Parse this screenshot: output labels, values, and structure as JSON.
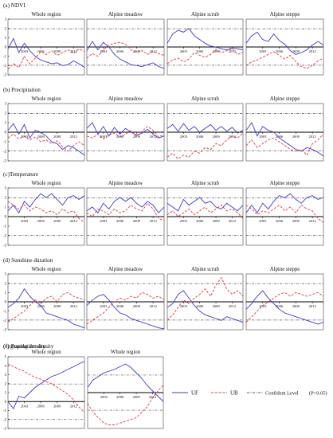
{
  "figure": {
    "x_ticks": [
      "2003",
      "2006",
      "2009",
      "2012"
    ],
    "y_ticks": [
      "3",
      "2",
      "1",
      "0",
      "-1",
      "-2",
      "-3"
    ],
    "legend": {
      "uf": "UF",
      "ub": "UB",
      "conf": "Confident Level",
      "conf_note": "(P<0.05)"
    },
    "colors": {
      "uf": "#3b3bd6",
      "ub": "#e03c3c",
      "conf": "#555555",
      "zero": "#000000"
    }
  },
  "chart_data": [
    {
      "type": "line",
      "title": "(a) NDVI",
      "subtitle": "Whole region",
      "x": [
        2000,
        2001,
        2002,
        2003,
        2004,
        2005,
        2006,
        2007,
        2008,
        2009,
        2010,
        2011,
        2012,
        2013,
        2014
      ],
      "ylim": [
        -3,
        3
      ],
      "conf": 1.96,
      "series": [
        {
          "name": "UF",
          "values": [
            -0.2,
            0.9,
            -0.6,
            0.4,
            -0.4,
            -1.0,
            -1.4,
            -1.6,
            -1.8,
            -1.7,
            -2.0,
            -1.9,
            -1.5,
            -1.8,
            -2.2
          ]
        },
        {
          "name": "UB",
          "values": [
            -2.4,
            -1.8,
            -2.2,
            -1.0,
            -1.8,
            -1.2,
            -0.5,
            -0.8,
            -0.4,
            -0.9,
            -0.6,
            -0.3,
            -0.7,
            -0.2,
            -0.5
          ]
        }
      ]
    },
    {
      "type": "line",
      "subtitle": "Alpine meadow",
      "x": [
        2000,
        2001,
        2002,
        2003,
        2004,
        2005,
        2006,
        2007,
        2008,
        2009,
        2010,
        2011,
        2012,
        2013,
        2014
      ],
      "ylim": [
        -3,
        3
      ],
      "conf": 1.96,
      "series": [
        {
          "name": "UF",
          "values": [
            -0.4,
            0.6,
            -0.3,
            0.5,
            0.0,
            -0.8,
            -1.3,
            -1.6,
            -1.9,
            -2.0,
            -2.1,
            -1.9,
            -1.7,
            -2.1,
            -2.3
          ]
        },
        {
          "name": "UB",
          "values": [
            -1.2,
            -0.7,
            -1.0,
            -0.3,
            0.2,
            0.4,
            0.5,
            0.3,
            -0.3,
            -0.6,
            -0.4,
            -0.8,
            -0.5,
            -0.7,
            -0.9
          ]
        }
      ]
    },
    {
      "type": "line",
      "subtitle": "Alpine scrub",
      "x": [
        2000,
        2001,
        2002,
        2003,
        2004,
        2005,
        2006,
        2007,
        2008,
        2009,
        2010,
        2011,
        2012,
        2013,
        2014
      ],
      "ylim": [
        -3,
        3
      ],
      "conf": 1.96,
      "series": [
        {
          "name": "UF",
          "values": [
            0.4,
            1.4,
            1.8,
            1.6,
            2.0,
            1.2,
            0.8,
            0.4,
            0.1,
            0.0,
            -0.2,
            -0.3,
            -0.1,
            -0.2,
            -0.3
          ]
        },
        {
          "name": "UB",
          "values": [
            -1.8,
            -1.4,
            -1.2,
            -1.6,
            -1.3,
            -0.6,
            -0.9,
            -1.1,
            -0.8,
            -0.3,
            -0.6,
            -0.4,
            -0.2,
            -0.8,
            -0.6
          ]
        }
      ]
    },
    {
      "type": "line",
      "subtitle": "Alpine steppe",
      "x": [
        2000,
        2001,
        2002,
        2003,
        2004,
        2005,
        2006,
        2007,
        2008,
        2009,
        2010,
        2011,
        2012,
        2013,
        2014
      ],
      "ylim": [
        -3,
        3
      ],
      "conf": 1.96,
      "series": [
        {
          "name": "UF",
          "values": [
            0.4,
            1.2,
            1.6,
            0.8,
            0.6,
            1.4,
            0.7,
            0.3,
            -0.4,
            -0.8,
            -0.6,
            -0.3,
            0.2,
            0.6,
            0.2
          ]
        },
        {
          "name": "UB",
          "values": [
            -2.0,
            -1.6,
            -1.4,
            -1.1,
            -0.8,
            -0.5,
            -0.9,
            -1.3,
            -0.9,
            -1.6,
            -2.1,
            -2.3,
            -2.0,
            -1.5,
            -1.2
          ]
        }
      ]
    },
    {
      "type": "line",
      "title": "(b) Precipitation",
      "subtitle": "Whole region",
      "x": [
        2000,
        2001,
        2002,
        2003,
        2004,
        2005,
        2006,
        2007,
        2008,
        2009,
        2010,
        2011,
        2012,
        2013,
        2014
      ],
      "ylim": [
        -3,
        3
      ],
      "conf": 1.96,
      "series": [
        {
          "name": "UF",
          "values": [
            0.2,
            0.9,
            -0.2,
            0.8,
            -0.6,
            0.2,
            0.0,
            -0.4,
            -1.0,
            -1.2,
            -1.8,
            -1.4,
            -1.6,
            -2.0,
            -2.4
          ]
        },
        {
          "name": "UB",
          "values": [
            -0.6,
            -0.2,
            -0.7,
            -0.4,
            -0.8,
            -0.5,
            -1.0,
            -0.8,
            -1.2,
            -0.9,
            -1.5,
            -2.0,
            -1.4,
            -1.0,
            -1.4
          ]
        }
      ]
    },
    {
      "type": "line",
      "subtitle": "Alpine meadow",
      "x": [
        2000,
        2001,
        2002,
        2003,
        2004,
        2005,
        2006,
        2007,
        2008,
        2009,
        2010,
        2011,
        2012,
        2013,
        2014
      ],
      "ylim": [
        -3,
        3
      ],
      "conf": 1.96,
      "series": [
        {
          "name": "UF",
          "values": [
            0.4,
            1.0,
            -0.2,
            0.6,
            -0.4,
            0.5,
            -0.2,
            0.4,
            0.0,
            -0.3,
            -0.1,
            0.3,
            -0.2,
            -0.6,
            -0.4
          ]
        },
        {
          "name": "UB",
          "values": [
            -0.4,
            -0.6,
            -0.2,
            -0.7,
            -0.3,
            -0.1,
            -0.5,
            -0.2,
            0.2,
            -0.4,
            0.1,
            0.6,
            0.2,
            -0.5,
            -0.2
          ]
        }
      ]
    },
    {
      "type": "line",
      "subtitle": "Alpine scrub",
      "x": [
        2000,
        2001,
        2002,
        2003,
        2004,
        2005,
        2006,
        2007,
        2008,
        2009,
        2010,
        2011,
        2012,
        2013,
        2014
      ],
      "ylim": [
        -3,
        3
      ],
      "conf": 1.96,
      "series": [
        {
          "name": "UF",
          "values": [
            0.4,
            0.8,
            0.1,
            0.9,
            0.2,
            0.6,
            0.0,
            0.4,
            0.8,
            0.2,
            0.6,
            0.1,
            0.5,
            -0.1,
            0.2
          ]
        },
        {
          "name": "UB",
          "values": [
            -2.6,
            -2.2,
            -2.8,
            -2.4,
            -2.6,
            -2.0,
            -2.2,
            -1.6,
            -1.8,
            -1.2,
            -1.4,
            -0.8,
            -0.4,
            -0.6,
            -0.1
          ]
        }
      ]
    },
    {
      "type": "line",
      "subtitle": "Alpine steppe",
      "x": [
        2000,
        2001,
        2002,
        2003,
        2004,
        2005,
        2006,
        2007,
        2008,
        2009,
        2010,
        2011,
        2012,
        2013,
        2014
      ],
      "ylim": [
        -3,
        3
      ],
      "conf": 1.96,
      "series": [
        {
          "name": "UF",
          "values": [
            0.2,
            1.0,
            -0.4,
            0.6,
            0.2,
            0.0,
            -0.6,
            -1.0,
            -1.4,
            -1.8,
            -2.0,
            -1.6,
            -1.8,
            -2.1,
            -2.5
          ]
        },
        {
          "name": "UB",
          "values": [
            -1.4,
            -0.8,
            -1.6,
            -1.2,
            -0.8,
            -0.6,
            -1.0,
            -1.4,
            -1.8,
            -2.0,
            -1.8,
            -2.4,
            -1.2,
            -0.8,
            -0.2
          ]
        }
      ]
    },
    {
      "type": "line",
      "title": "(c)Temperature",
      "subtitle": "Whole region",
      "x": [
        2000,
        2001,
        2002,
        2003,
        2004,
        2005,
        2006,
        2007,
        2008,
        2009,
        2010,
        2011,
        2012,
        2013,
        2014
      ],
      "ylim": [
        -3,
        3
      ],
      "conf": 1.96,
      "series": [
        {
          "name": "UF",
          "values": [
            0.6,
            1.2,
            0.4,
            1.6,
            1.0,
            1.8,
            2.4,
            2.0,
            2.4,
            1.8,
            1.2,
            2.0,
            2.2,
            1.8,
            2.2
          ]
        },
        {
          "name": "UB",
          "values": [
            1.6,
            1.2,
            0.8,
            1.2,
            0.6,
            1.0,
            0.8,
            0.4,
            0.6,
            0.2,
            0.8,
            0.4,
            0.6,
            -0.2,
            -0.6
          ]
        }
      ]
    },
    {
      "type": "line",
      "subtitle": "Alpine meadow",
      "x": [
        2000,
        2001,
        2002,
        2003,
        2004,
        2005,
        2006,
        2007,
        2008,
        2009,
        2010,
        2011,
        2012,
        2013,
        2014
      ],
      "ylim": [
        -3,
        3
      ],
      "conf": 1.96,
      "series": [
        {
          "name": "UF",
          "values": [
            0.6,
            1.0,
            0.4,
            1.4,
            0.8,
            1.6,
            2.0,
            1.6,
            2.0,
            1.4,
            1.0,
            1.6,
            1.2,
            0.4,
            1.0
          ]
        },
        {
          "name": "UB",
          "values": [
            0.4,
            0.0,
            0.8,
            0.6,
            0.2,
            0.8,
            0.4,
            0.6,
            1.2,
            0.8,
            0.6,
            1.4,
            0.8,
            -0.2,
            -0.4
          ]
        }
      ]
    },
    {
      "type": "line",
      "subtitle": "Alpine scrub",
      "x": [
        2000,
        2001,
        2002,
        2003,
        2004,
        2005,
        2006,
        2007,
        2008,
        2009,
        2010,
        2011,
        2012,
        2013,
        2014
      ],
      "ylim": [
        -3,
        3
      ],
      "conf": 1.96,
      "series": [
        {
          "name": "UF",
          "values": [
            1.4,
            1.0,
            0.6,
            1.8,
            1.2,
            1.6,
            2.0,
            1.4,
            1.6,
            1.0,
            0.8,
            1.4,
            1.0,
            0.6,
            1.2
          ]
        },
        {
          "name": "UB",
          "values": [
            0.2,
            0.6,
            0.0,
            0.4,
            0.8,
            0.2,
            0.6,
            1.0,
            0.4,
            0.8,
            1.2,
            0.6,
            0.8,
            0.4,
            -0.2
          ]
        }
      ]
    },
    {
      "type": "line",
      "subtitle": "Alpine steppe",
      "x": [
        2000,
        2001,
        2002,
        2003,
        2004,
        2005,
        2006,
        2007,
        2008,
        2009,
        2010,
        2011,
        2012,
        2013,
        2014
      ],
      "ylim": [
        -3,
        3
      ],
      "conf": 1.96,
      "series": [
        {
          "name": "UF",
          "values": [
            0.4,
            1.2,
            0.4,
            1.4,
            0.8,
            1.6,
            2.2,
            2.0,
            2.4,
            1.8,
            1.4,
            2.0,
            2.2,
            1.8,
            2.0
          ]
        },
        {
          "name": "UB",
          "values": [
            1.2,
            0.8,
            0.2,
            0.6,
            0.4,
            0.8,
            1.2,
            0.6,
            1.0,
            0.4,
            1.2,
            0.8,
            0.6,
            -0.2,
            -0.6
          ]
        }
      ]
    },
    {
      "type": "line",
      "title": "(d) Sunshine duration",
      "subtitle": "Whole region",
      "x": [
        2000,
        2001,
        2002,
        2003,
        2004,
        2005,
        2006,
        2007,
        2008,
        2009,
        2010,
        2011,
        2012,
        2013,
        2014
      ],
      "ylim": [
        -3,
        3
      ],
      "conf": 1.96,
      "series": [
        {
          "name": "UF",
          "values": [
            -0.6,
            -0.2,
            0.4,
            1.4,
            0.6,
            0.0,
            -0.4,
            -1.2,
            -1.4,
            -1.6,
            -1.8,
            -2.0,
            -2.4,
            -2.6,
            -2.8
          ]
        },
        {
          "name": "UB",
          "values": [
            -2.2,
            -1.8,
            -1.4,
            -1.0,
            -0.4,
            0.2,
            -0.2,
            0.4,
            0.6,
            0.0,
            0.8,
            1.0,
            0.6,
            0.4,
            0.2
          ]
        }
      ]
    },
    {
      "type": "line",
      "subtitle": "Alpine meadow",
      "x": [
        2000,
        2001,
        2002,
        2003,
        2004,
        2005,
        2006,
        2007,
        2008,
        2009,
        2010,
        2011,
        2012,
        2013,
        2014
      ],
      "ylim": [
        -3,
        3
      ],
      "conf": 1.96,
      "series": [
        {
          "name": "UF",
          "values": [
            -0.4,
            0.2,
            0.6,
            0.8,
            0.2,
            -0.6,
            -1.2,
            -1.4,
            -1.8,
            -2.0,
            -2.2,
            -2.4,
            -2.6,
            -2.8,
            -2.9
          ]
        },
        {
          "name": "UB",
          "values": [
            -2.4,
            -2.0,
            -1.6,
            -1.2,
            -0.6,
            0.0,
            0.4,
            0.2,
            0.6,
            0.4,
            1.0,
            0.8,
            0.4,
            0.6,
            0.2
          ]
        }
      ]
    },
    {
      "type": "line",
      "subtitle": "Alpine scrub",
      "x": [
        2000,
        2001,
        2002,
        2003,
        2004,
        2005,
        2006,
        2007,
        2008,
        2009,
        2010,
        2011,
        2012,
        2013,
        2014
      ],
      "ylim": [
        -3,
        3
      ],
      "conf": 1.96,
      "series": [
        {
          "name": "UF",
          "values": [
            -0.6,
            -0.2,
            0.8,
            1.2,
            0.4,
            -0.4,
            -1.0,
            -1.4,
            -1.6,
            -1.8,
            -2.0,
            -1.6,
            -1.8,
            -2.0,
            -2.2
          ]
        },
        {
          "name": "UB",
          "values": [
            -2.0,
            -1.4,
            -0.6,
            0.2,
            -0.2,
            0.4,
            0.8,
            1.4,
            0.6,
            1.8,
            2.6,
            1.4,
            0.8,
            1.2,
            0.6
          ]
        }
      ]
    },
    {
      "type": "line",
      "subtitle": "Alpine steppe",
      "x": [
        2000,
        2001,
        2002,
        2003,
        2004,
        2005,
        2006,
        2007,
        2008,
        2009,
        2010,
        2011,
        2012,
        2013,
        2014
      ],
      "ylim": [
        -3,
        3
      ],
      "conf": 1.96,
      "series": [
        {
          "name": "UF",
          "values": [
            -0.8,
            -0.2,
            0.6,
            1.2,
            0.4,
            -0.2,
            -0.8,
            -1.2,
            -1.4,
            -1.6,
            -1.8,
            -2.0,
            -2.2,
            -2.4,
            -2.2
          ]
        },
        {
          "name": "UB",
          "values": [
            -2.2,
            -1.6,
            -1.0,
            -0.4,
            0.0,
            0.4,
            0.8,
            1.0,
            0.6,
            1.0,
            0.8,
            0.6,
            0.8,
            1.0,
            0.6
          ]
        }
      ]
    },
    {
      "type": "line",
      "title": "(e) Population density",
      "subtitle": "Whole region",
      "x": [
        2000,
        2001,
        2002,
        2003,
        2004,
        2005,
        2006,
        2007,
        2008,
        2009,
        2010,
        2011,
        2012,
        2013,
        2014
      ],
      "ylim": [
        -3,
        5
      ],
      "conf": 1.96,
      "series": [
        {
          "name": "UF",
          "values": [
            0.0,
            -0.8,
            0.6,
            0.4,
            1.0,
            1.6,
            2.0,
            2.4,
            2.8,
            3.0,
            3.3,
            3.6,
            3.9,
            4.2,
            4.5
          ]
        },
        {
          "name": "UB",
          "values": [
            4.2,
            3.9,
            3.6,
            3.4,
            3.0,
            2.7,
            2.5,
            2.2,
            2.0,
            1.6,
            1.2,
            0.8,
            0.2,
            -0.6,
            -1.2
          ]
        }
      ]
    },
    {
      "type": "line",
      "title": "(f) grazing density",
      "subtitle": "Whole region",
      "x": [
        2000,
        2001,
        2002,
        2003,
        2004,
        2005,
        2006,
        2007,
        2008,
        2009,
        2010,
        2011,
        2012,
        2013,
        2014
      ],
      "ylim": [
        -4,
        4
      ],
      "conf": 1.96,
      "series": [
        {
          "name": "UF",
          "values": [
            0.6,
            1.4,
            1.8,
            2.2,
            2.4,
            2.6,
            2.9,
            3.2,
            2.8,
            2.2,
            1.6,
            0.8,
            0.2,
            -0.4,
            -1.0
          ]
        },
        {
          "name": "UB",
          "values": [
            -1.2,
            -2.2,
            -2.8,
            -3.4,
            -3.6,
            -3.6,
            -3.4,
            -3.2,
            -3.0,
            -2.8,
            -2.2,
            -1.6,
            -0.6,
            0.2,
            0.8
          ]
        }
      ]
    }
  ]
}
